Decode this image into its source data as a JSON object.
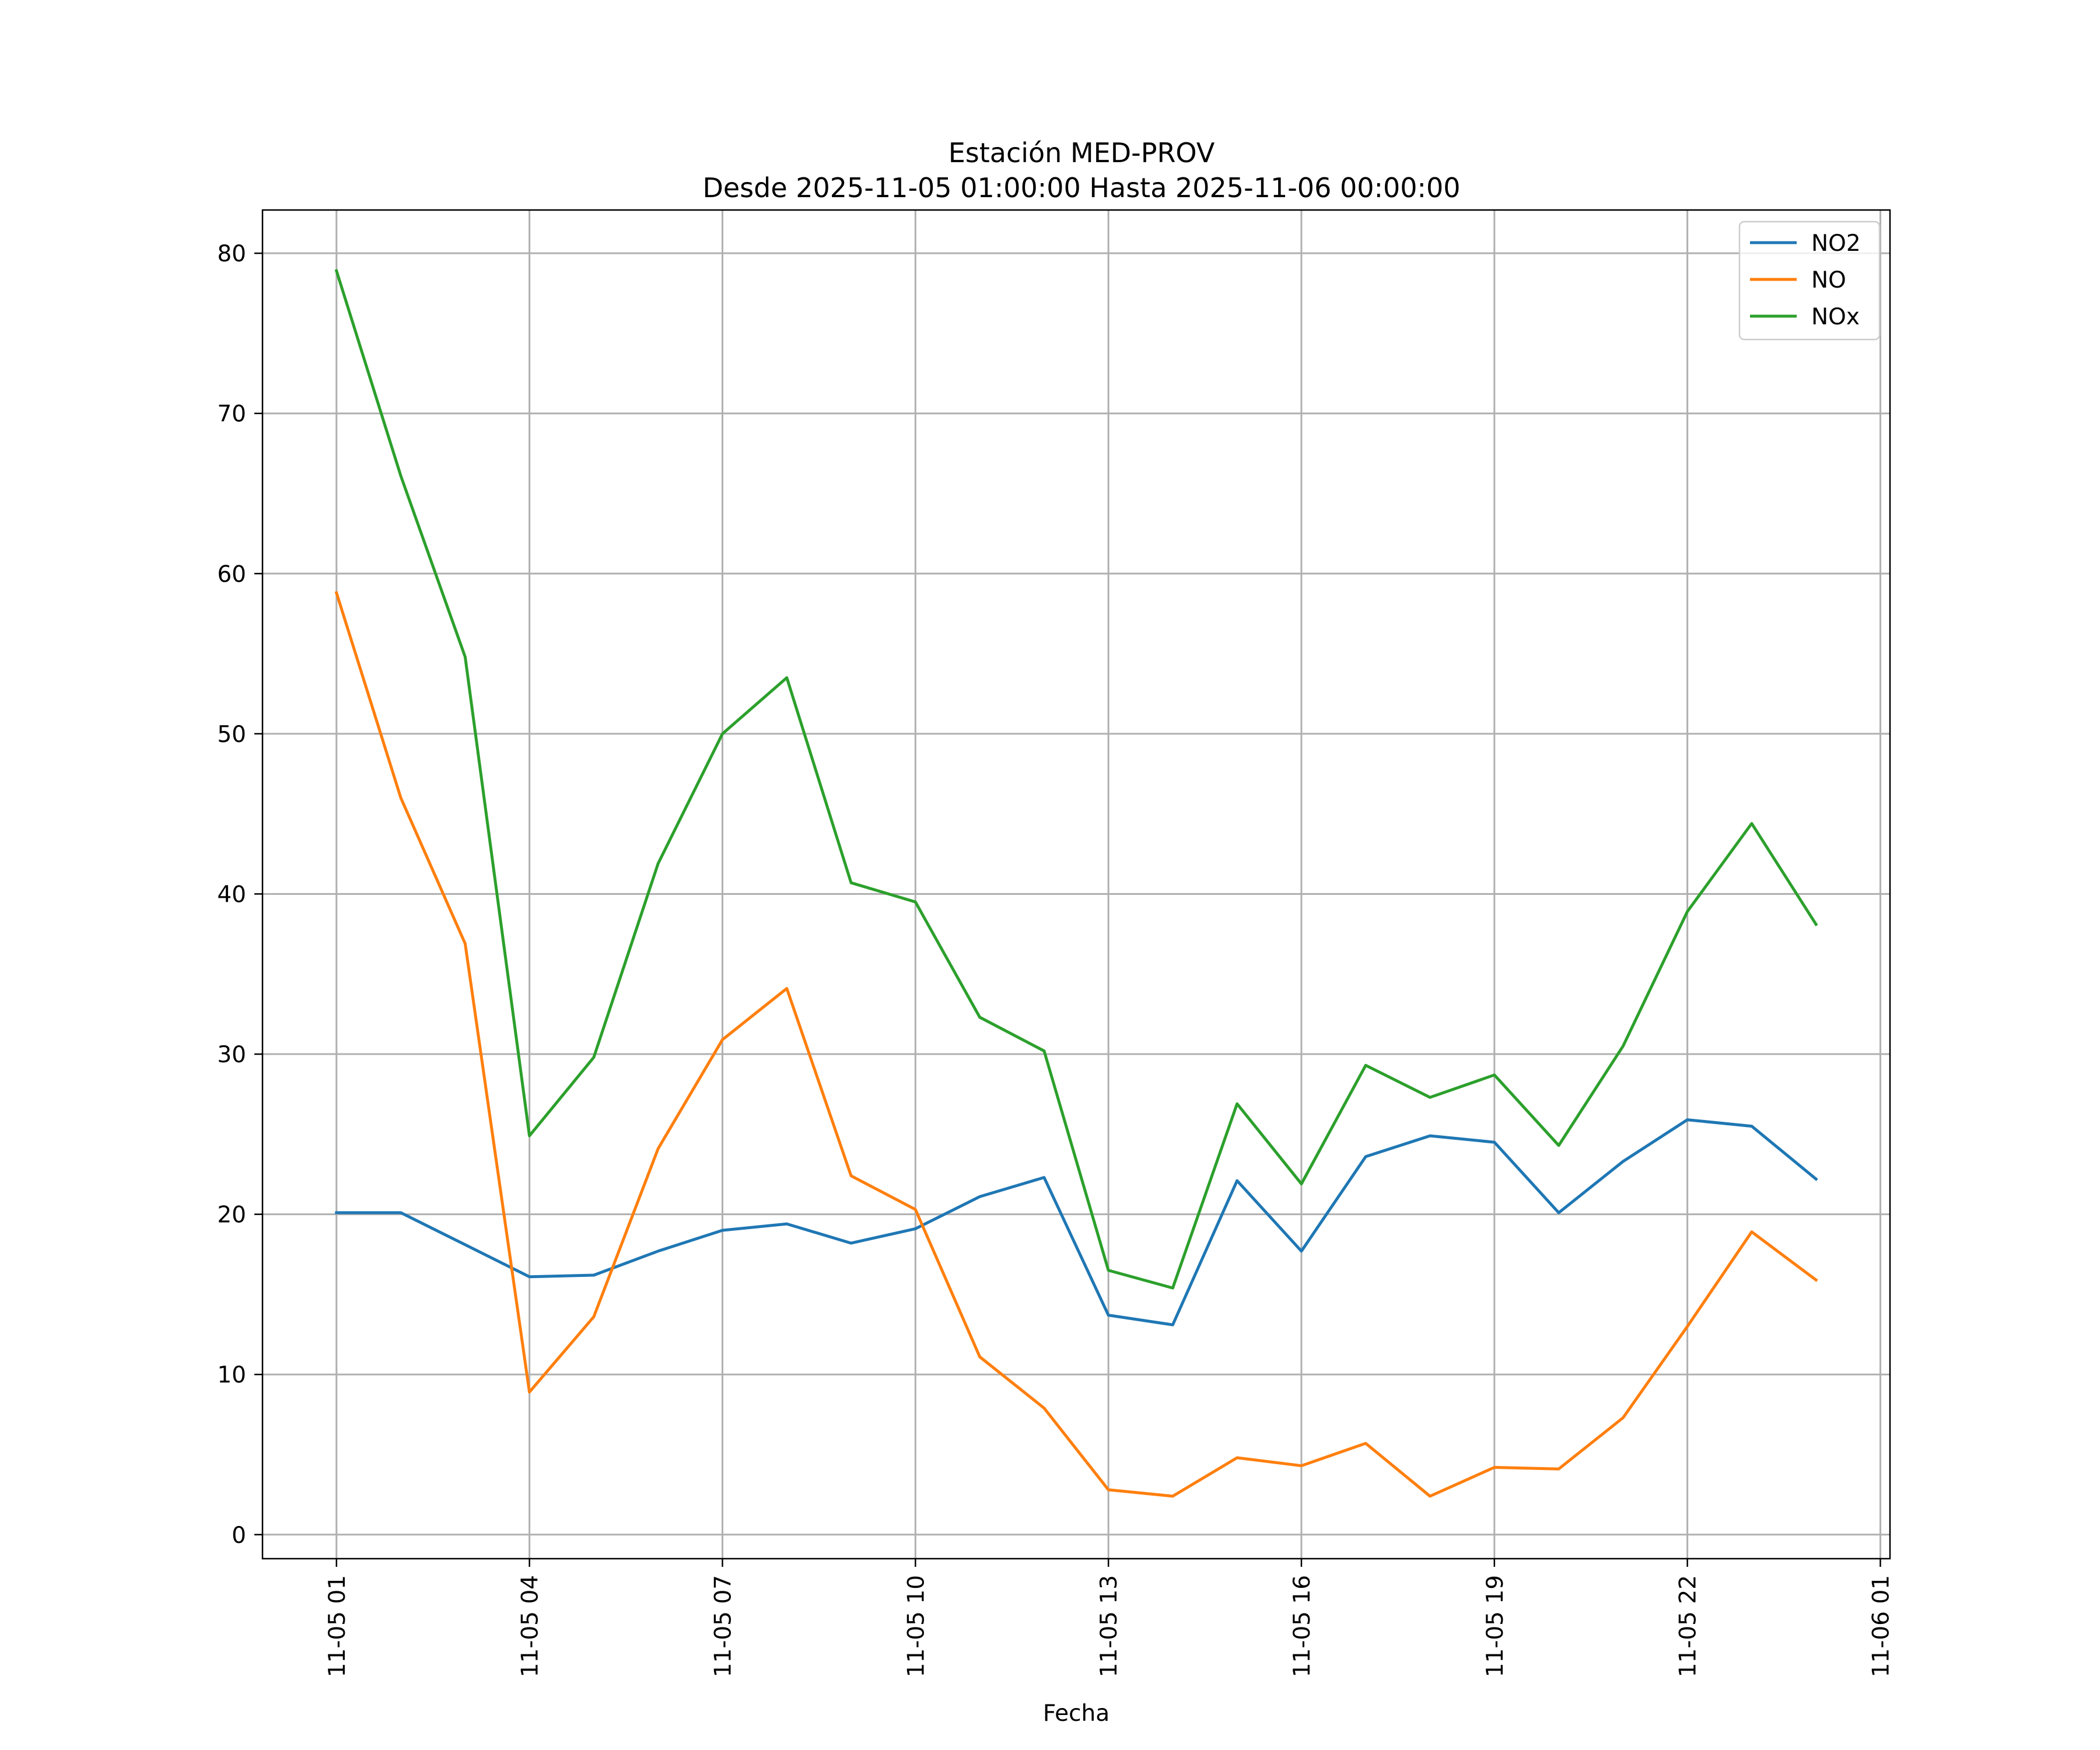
{
  "chart_data": {
    "type": "line",
    "title": "Estación MED-PROV",
    "subtitle": "Desde 2025-11-05 01:00:00 Hasta 2025-11-06 00:00:00",
    "xlabel": "Fecha",
    "ylabel": "",
    "x": [
      "11-05 01:00",
      "11-05 02:00",
      "11-05 03:00",
      "11-05 04:00",
      "11-05 05:00",
      "11-05 06:00",
      "11-05 07:00",
      "11-05 08:00",
      "11-05 09:00",
      "11-05 10:00",
      "11-05 11:00",
      "11-05 12:00",
      "11-05 13:00",
      "11-05 14:00",
      "11-05 15:00",
      "11-05 16:00",
      "11-05 17:00",
      "11-05 18:00",
      "11-05 19:00",
      "11-05 20:00",
      "11-05 21:00",
      "11-05 22:00",
      "11-05 23:00",
      "11-06 00:00"
    ],
    "x_hours": [
      0,
      1,
      2,
      3,
      4,
      5,
      6,
      7,
      8,
      9,
      10,
      11,
      12,
      13,
      14,
      15,
      16,
      17,
      18,
      19,
      20,
      21,
      22,
      23
    ],
    "x_range_hours": [
      -1.15,
      24.15
    ],
    "x_ticks": [
      {
        "hour": 0,
        "label": "11-05 01"
      },
      {
        "hour": 3,
        "label": "11-05 04"
      },
      {
        "hour": 6,
        "label": "11-05 07"
      },
      {
        "hour": 9,
        "label": "11-05 10"
      },
      {
        "hour": 12,
        "label": "11-05 13"
      },
      {
        "hour": 15,
        "label": "11-05 16"
      },
      {
        "hour": 18,
        "label": "11-05 19"
      },
      {
        "hour": 21,
        "label": "11-05 22"
      },
      {
        "hour": 24,
        "label": "11-06 01"
      }
    ],
    "y_ticks": [
      0,
      10,
      20,
      30,
      40,
      50,
      60,
      70,
      80
    ],
    "ylim": [
      -1.5,
      82.7
    ],
    "grid": true,
    "legend_position": "top-right",
    "series": [
      {
        "name": "NO2",
        "color": "#1f77b4",
        "values": [
          20.1,
          20.1,
          18.1,
          16.1,
          16.2,
          17.7,
          19.0,
          19.4,
          18.2,
          19.1,
          21.1,
          22.3,
          13.7,
          13.1,
          22.1,
          17.7,
          23.6,
          24.9,
          24.5,
          20.1,
          23.3,
          25.9,
          25.5,
          22.2
        ]
      },
      {
        "name": "NO",
        "color": "#ff7f0e",
        "values": [
          58.8,
          46.0,
          36.9,
          8.9,
          13.6,
          24.1,
          30.9,
          34.1,
          22.4,
          20.3,
          11.1,
          7.9,
          2.8,
          2.4,
          4.8,
          4.3,
          5.7,
          2.4,
          4.2,
          4.1,
          7.3,
          13.0,
          18.9,
          15.9
        ]
      },
      {
        "name": "NOx",
        "color": "#2ca02c",
        "values": [
          78.9,
          66.1,
          54.8,
          24.9,
          29.8,
          41.9,
          50.0,
          53.5,
          40.7,
          39.5,
          32.3,
          30.2,
          16.5,
          15.4,
          26.9,
          21.9,
          29.3,
          27.3,
          28.7,
          24.3,
          30.5,
          38.9,
          44.4,
          38.1
        ]
      }
    ]
  }
}
